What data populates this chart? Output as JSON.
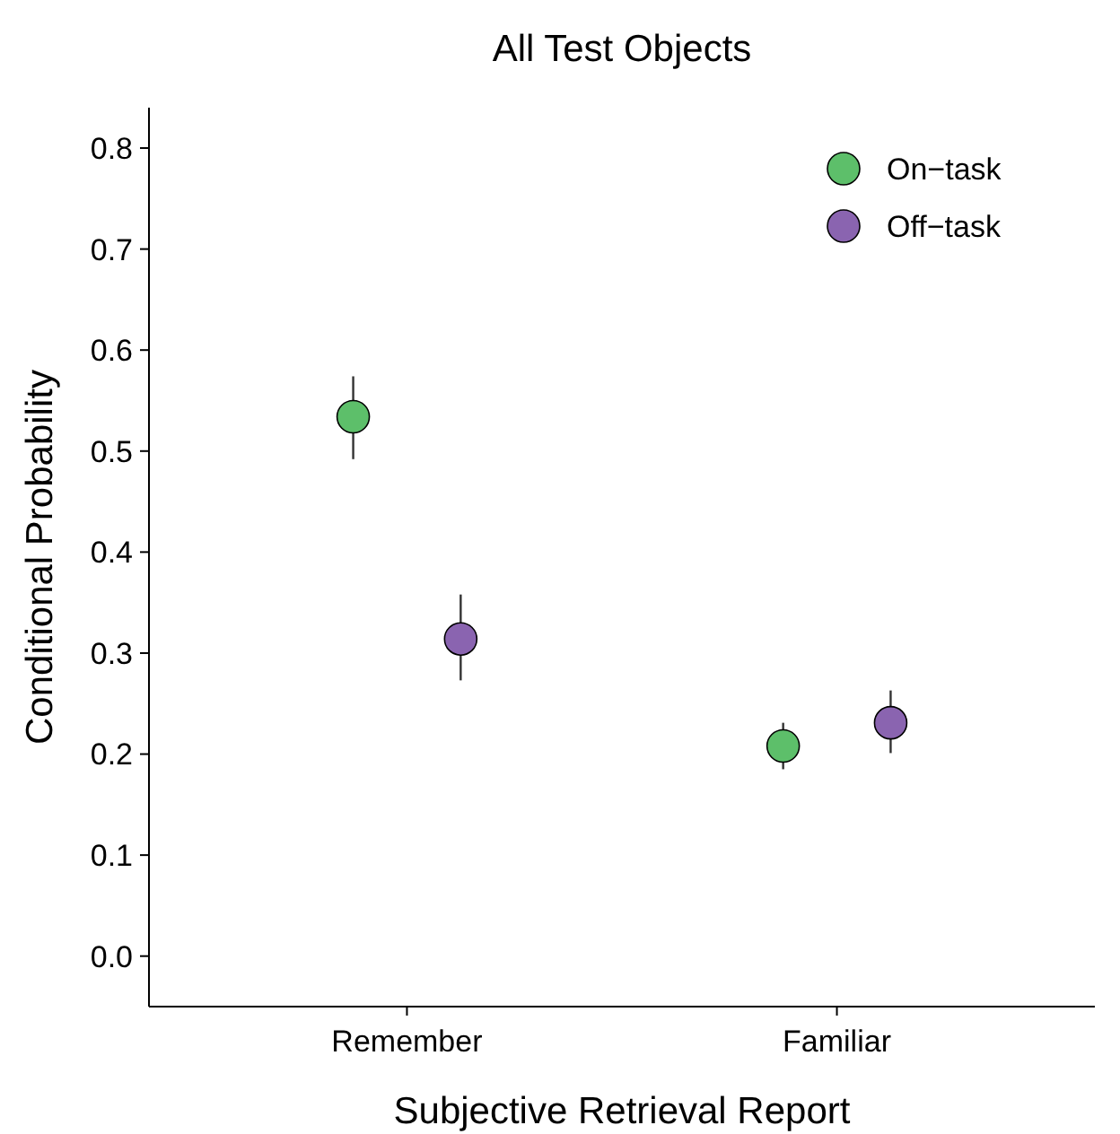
{
  "chart_data": {
    "type": "scatter",
    "title": "All Test Objects",
    "xlabel": "Subjective Retrieval Report",
    "ylabel": "Conditional Probability",
    "categories": [
      "Remember",
      "Familiar"
    ],
    "series": [
      {
        "name": "On−task",
        "color": "#5dbf6a",
        "values": [
          0.534,
          0.208
        ],
        "errors": [
          [
            0.492,
            0.574
          ],
          [
            0.185,
            0.231
          ]
        ]
      },
      {
        "name": "Off−task",
        "color": "#8a64b0",
        "values": [
          0.314,
          0.231
        ],
        "errors": [
          [
            0.273,
            0.358
          ],
          [
            0.201,
            0.263
          ]
        ]
      }
    ],
    "ylim": [
      -0.05,
      0.84
    ],
    "yticks": [
      {
        "value": 0,
        "label": "0.0"
      },
      {
        "value": 0.1,
        "label": "0.1"
      },
      {
        "value": 0.2,
        "label": "0.2"
      },
      {
        "value": 0.3,
        "label": "0.3"
      },
      {
        "value": 0.4,
        "label": "0.4"
      },
      {
        "value": 0.5,
        "label": "0.5"
      },
      {
        "value": 0.6,
        "label": "0.6"
      },
      {
        "value": 0.7,
        "label": "0.7"
      },
      {
        "value": 0.8,
        "label": "0.8"
      }
    ],
    "grid": false,
    "legend": "top right",
    "marker": "circle"
  }
}
